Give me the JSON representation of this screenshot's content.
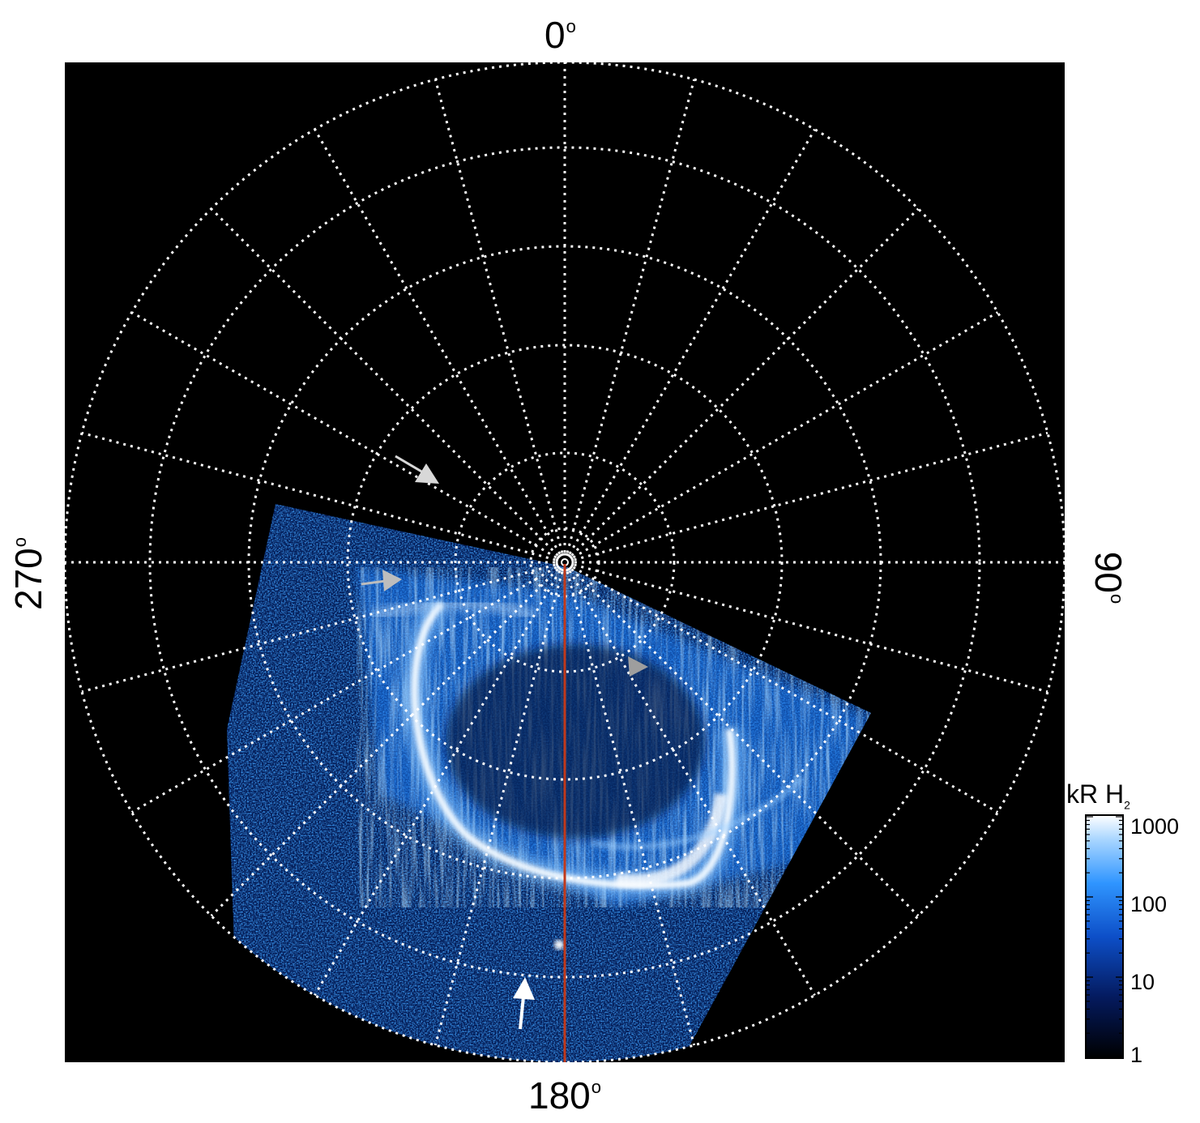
{
  "axes": {
    "top": "0",
    "bottom": "180",
    "left": "270",
    "right": "90",
    "degree_symbol": "o"
  },
  "colorbar": {
    "title_main": "kR H",
    "title_sub": "2",
    "ticks": [
      "1000",
      "100",
      "10",
      "1"
    ]
  },
  "colors": {
    "background": "#000000",
    "grid": "#ffffff",
    "aurora_bright": "#e6f4ff",
    "aurora_mid": "#3fa0ff",
    "aurora_dark": "#0d3a9a",
    "meridian": "#c0391b",
    "arrow_white": "#ffffff",
    "arrow_gray": "#c8c8c8"
  }
}
